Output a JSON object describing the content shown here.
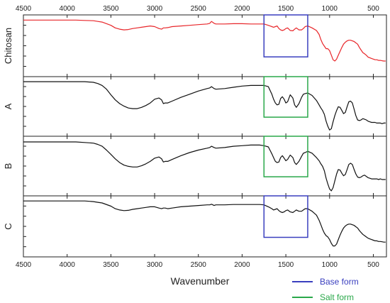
{
  "chart_data": {
    "type": "line",
    "xlabel": "Wavenumber",
    "x_reversed": true,
    "xlim": [
      4500,
      350
    ],
    "x_ticks": [
      4500,
      4000,
      3500,
      3000,
      2500,
      2000,
      1500,
      1000,
      500
    ],
    "panels": [
      {
        "name": "Chitosan",
        "color": "#e8262a",
        "x": [
          4500,
          4300,
          4100,
          3900,
          3800,
          3700,
          3650,
          3600,
          3500,
          3450,
          3400,
          3350,
          3300,
          3250,
          3200,
          3150,
          3100,
          3050,
          3000,
          2950,
          2920,
          2900,
          2880,
          2850,
          2800,
          2700,
          2600,
          2500,
          2400,
          2370,
          2350,
          2320,
          2300,
          2200,
          2100,
          2000,
          1900,
          1800,
          1750,
          1700,
          1660,
          1640,
          1620,
          1600,
          1580,
          1560,
          1540,
          1520,
          1500,
          1480,
          1450,
          1420,
          1400,
          1380,
          1350,
          1320,
          1300,
          1280,
          1250,
          1200,
          1150,
          1120,
          1100,
          1080,
          1060,
          1040,
          1020,
          1000,
          980,
          960,
          940,
          920,
          900,
          880,
          860,
          840,
          820,
          800,
          780,
          760,
          740,
          720,
          700,
          680,
          660,
          640,
          620,
          600,
          580,
          560,
          540,
          520,
          500,
          480,
          460,
          440,
          420,
          400,
          380,
          360
        ],
        "y": [
          92,
          92,
          92,
          92,
          91.5,
          91,
          90,
          89,
          84,
          80,
          78,
          77,
          77.5,
          79,
          80,
          81,
          82,
          83,
          82,
          79,
          78,
          80,
          80,
          80.5,
          82,
          83,
          84,
          85,
          86,
          87,
          90,
          87,
          86,
          86,
          86.5,
          86.5,
          86,
          86,
          86,
          84,
          82,
          81,
          82,
          83,
          79,
          77,
          76,
          77,
          79,
          80,
          76,
          75.5,
          78,
          80,
          77,
          77,
          79,
          82,
          83,
          80,
          76,
          70,
          62,
          56,
          52,
          48,
          48,
          45,
          38,
          31,
          29,
          32,
          38,
          44,
          50,
          55,
          58,
          60,
          61,
          61,
          60,
          59,
          57,
          55,
          50,
          46,
          42,
          40,
          38,
          35,
          34,
          33,
          32,
          31,
          31,
          30,
          30,
          29.5,
          29,
          29
        ]
      },
      {
        "name": "A",
        "color": "#111111",
        "x": [
          4500,
          4300,
          4100,
          3900,
          3800,
          3700,
          3650,
          3600,
          3550,
          3500,
          3450,
          3400,
          3350,
          3300,
          3250,
          3200,
          3150,
          3100,
          3050,
          3000,
          2950,
          2920,
          2900,
          2880,
          2850,
          2800,
          2700,
          2600,
          2500,
          2400,
          2370,
          2350,
          2320,
          2300,
          2200,
          2100,
          2000,
          1900,
          1800,
          1750,
          1700,
          1660,
          1640,
          1620,
          1600,
          1580,
          1560,
          1540,
          1520,
          1500,
          1480,
          1450,
          1420,
          1400,
          1380,
          1350,
          1320,
          1300,
          1280,
          1250,
          1200,
          1150,
          1120,
          1100,
          1080,
          1060,
          1040,
          1020,
          1000,
          980,
          960,
          940,
          920,
          900,
          880,
          860,
          840,
          820,
          800,
          780,
          760,
          740,
          720,
          700,
          680,
          660,
          640,
          620,
          600,
          580,
          560,
          540,
          520,
          500,
          480,
          460,
          440,
          420,
          400,
          380,
          360
        ],
        "y": [
          92,
          92,
          92,
          92,
          92,
          91,
          89,
          86,
          80,
          71,
          63,
          57,
          53,
          50,
          49,
          49,
          51,
          54,
          58,
          64,
          66,
          63,
          57,
          58,
          58,
          61,
          67,
          72,
          77,
          81,
          82,
          84,
          81,
          80,
          81,
          83,
          85,
          86,
          86,
          86,
          84,
          72,
          64,
          58,
          55,
          56,
          65,
          68,
          64,
          58,
          60,
          71,
          66,
          55,
          51,
          57,
          67,
          72,
          73,
          74,
          70,
          62,
          55,
          50,
          46,
          40,
          29,
          21,
          15,
          17,
          28,
          38,
          46,
          52,
          51,
          46,
          41,
          43,
          52,
          60,
          61,
          58,
          48,
          38,
          31,
          30,
          31,
          33,
          32,
          31,
          29,
          28,
          27,
          27,
          27,
          26,
          26,
          26,
          25,
          26,
          26
        ]
      },
      {
        "name": "B",
        "color": "#111111",
        "x": [
          4500,
          4300,
          4100,
          3900,
          3800,
          3700,
          3650,
          3600,
          3550,
          3500,
          3450,
          3400,
          3350,
          3300,
          3250,
          3200,
          3150,
          3100,
          3050,
          3000,
          2950,
          2920,
          2900,
          2880,
          2850,
          2800,
          2700,
          2600,
          2500,
          2400,
          2370,
          2350,
          2320,
          2300,
          2200,
          2100,
          2000,
          1900,
          1800,
          1750,
          1700,
          1660,
          1640,
          1620,
          1600,
          1580,
          1560,
          1540,
          1520,
          1500,
          1480,
          1450,
          1420,
          1400,
          1380,
          1350,
          1320,
          1300,
          1280,
          1250,
          1200,
          1150,
          1120,
          1100,
          1080,
          1060,
          1040,
          1020,
          1000,
          980,
          960,
          940,
          920,
          900,
          880,
          860,
          840,
          820,
          800,
          780,
          760,
          740,
          720,
          700,
          680,
          660,
          640,
          620,
          600,
          580,
          560,
          540,
          520,
          500,
          480,
          460,
          440,
          420,
          400,
          380,
          360
        ],
        "y": [
          91,
          91,
          91,
          91,
          90,
          89,
          87,
          84,
          78,
          71,
          64,
          58,
          54,
          52,
          51,
          51,
          53,
          56,
          60,
          65,
          67,
          64,
          59,
          60,
          60,
          63,
          69,
          74,
          78,
          81,
          82,
          84,
          82,
          81,
          82,
          84,
          85,
          86,
          86,
          85,
          83,
          72,
          66,
          60,
          58,
          59,
          66,
          69,
          65,
          61,
          63,
          70,
          66,
          58,
          55,
          60,
          68,
          73,
          74,
          76,
          73,
          66,
          61,
          56,
          52,
          45,
          33,
          24,
          16,
          13,
          18,
          29,
          40,
          47,
          46,
          41,
          37,
          39,
          47,
          55,
          57,
          55,
          47,
          40,
          35,
          34,
          35,
          37,
          38,
          36,
          34,
          33,
          32,
          32,
          32,
          32,
          31,
          32,
          31,
          31,
          31
        ]
      },
      {
        "name": "C",
        "color": "#111111",
        "x": [
          4500,
          4300,
          4100,
          3900,
          3800,
          3700,
          3650,
          3600,
          3500,
          3450,
          3400,
          3350,
          3300,
          3250,
          3200,
          3150,
          3100,
          3050,
          3000,
          2950,
          2920,
          2900,
          2880,
          2850,
          2800,
          2700,
          2600,
          2500,
          2400,
          2370,
          2350,
          2320,
          2300,
          2200,
          2100,
          2000,
          1900,
          1800,
          1750,
          1700,
          1660,
          1640,
          1620,
          1600,
          1580,
          1560,
          1540,
          1520,
          1500,
          1480,
          1450,
          1420,
          1400,
          1380,
          1350,
          1320,
          1300,
          1280,
          1250,
          1200,
          1150,
          1120,
          1100,
          1080,
          1060,
          1040,
          1020,
          1000,
          980,
          960,
          940,
          920,
          900,
          880,
          860,
          840,
          820,
          800,
          780,
          760,
          740,
          720,
          700,
          680,
          660,
          640,
          620,
          600,
          580,
          560,
          540,
          520,
          500,
          480,
          460,
          440,
          420,
          400,
          380,
          360
        ],
        "y": [
          92,
          92,
          92,
          92,
          92,
          91,
          90,
          89,
          84,
          80,
          78,
          77,
          77.5,
          79,
          80,
          81,
          82,
          83,
          83,
          81,
          80,
          81,
          81,
          80,
          81,
          83,
          84,
          85,
          86,
          86,
          87,
          85,
          86,
          86,
          86.5,
          86.5,
          86.5,
          86.5,
          86,
          83,
          80,
          78,
          79,
          80,
          77,
          75,
          74,
          75,
          77,
          78,
          75,
          74,
          76,
          78,
          76,
          76,
          78,
          80,
          80,
          76,
          70,
          62,
          55,
          48,
          42,
          38,
          36,
          32,
          26,
          22,
          22,
          25,
          32,
          39,
          45,
          50,
          53,
          55,
          56,
          56,
          55,
          54,
          52,
          50,
          46,
          43,
          40,
          38,
          36,
          34,
          33,
          32,
          31,
          30,
          30,
          29,
          29,
          28.5,
          28,
          28
        ]
      }
    ],
    "highlights": [
      {
        "panels": [
          "Chitosan"
        ],
        "x_range": [
          1750,
          1250
        ],
        "form": "base"
      },
      {
        "panels": [
          "A",
          "B"
        ],
        "x_range": [
          1750,
          1250
        ],
        "form": "salt"
      },
      {
        "panels": [
          "C"
        ],
        "x_range": [
          1750,
          1250
        ],
        "form": "base"
      }
    ],
    "legend": [
      {
        "label": "Base form",
        "color": "#3a3fbf"
      },
      {
        "label": "Salt form",
        "color": "#2aa84a"
      }
    ],
    "legend_position": "bottom-right"
  }
}
